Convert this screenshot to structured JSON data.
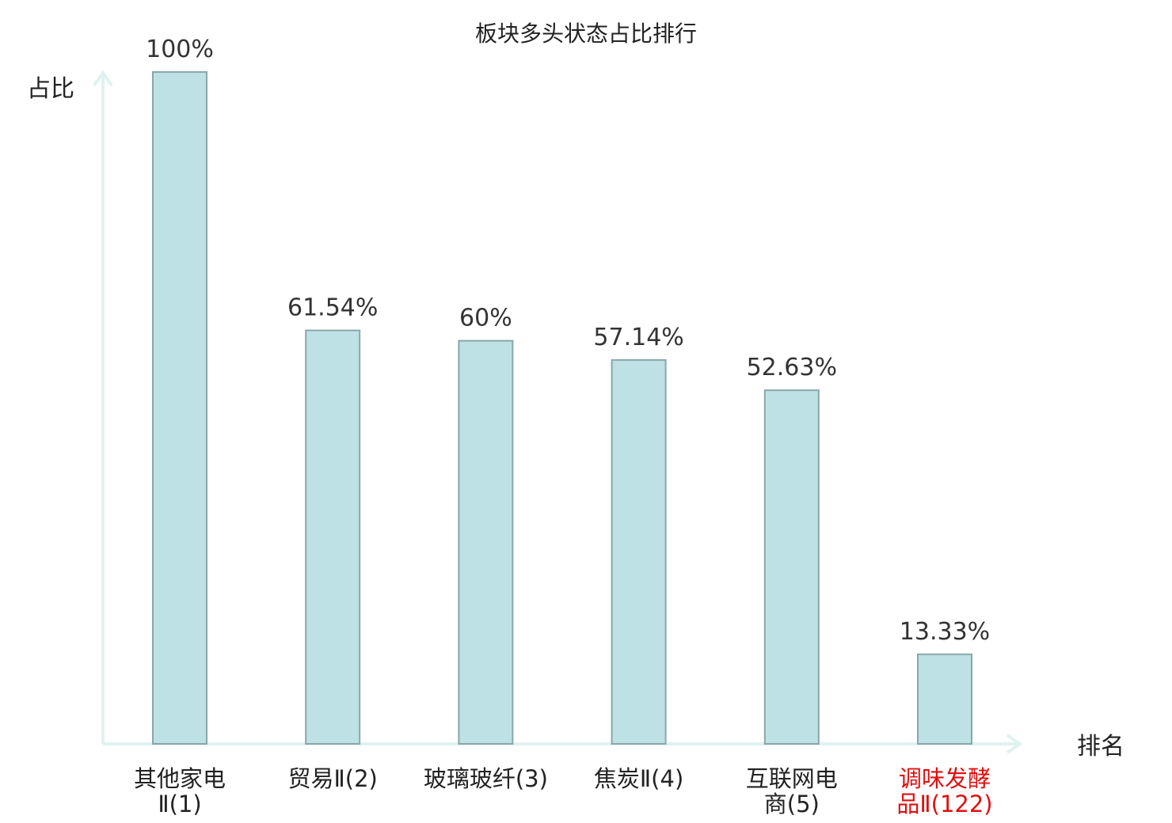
{
  "chart_data": {
    "type": "bar",
    "title": "板块多头状态占比排行",
    "ylabel": "占比",
    "xlabel": "排名",
    "ylim": [
      0,
      100
    ],
    "grid": false,
    "colors": {
      "bar_fill": "#bde1e4",
      "bar_stroke": "#8aa7aa",
      "axis": "#e0f2f0",
      "highlight": "#e01010"
    },
    "categories": [
      {
        "lines": [
          "其他家电",
          "Ⅱ(1)"
        ],
        "highlight": false
      },
      {
        "lines": [
          "贸易Ⅱ(2)"
        ],
        "highlight": false
      },
      {
        "lines": [
          "玻璃玻纤(3)"
        ],
        "highlight": false
      },
      {
        "lines": [
          "焦炭Ⅱ(4)"
        ],
        "highlight": false
      },
      {
        "lines": [
          "互联网电",
          "商(5)"
        ],
        "highlight": false
      },
      {
        "lines": [
          "调味发酵",
          "品Ⅱ(122)"
        ],
        "highlight": true
      }
    ],
    "values": [
      100,
      61.54,
      60,
      57.14,
      52.63,
      13.33
    ],
    "value_labels": [
      "100%",
      "61.54%",
      "60%",
      "57.14%",
      "52.63%",
      "13.33%"
    ]
  }
}
